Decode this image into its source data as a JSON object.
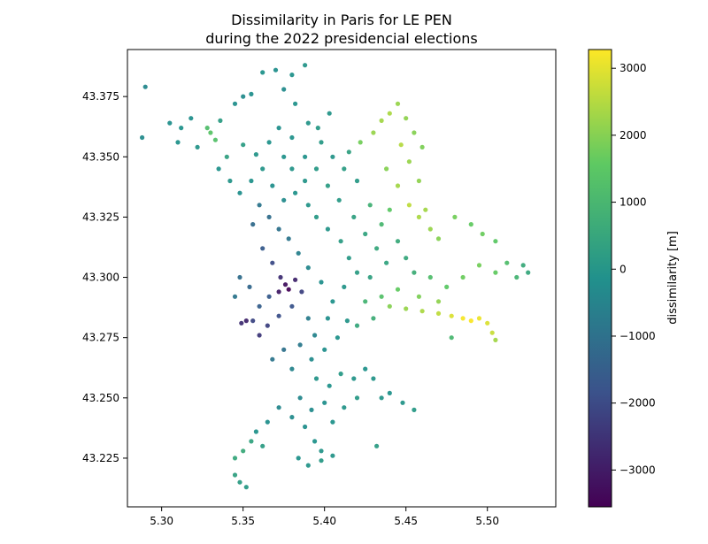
{
  "chart_data": {
    "type": "scatter",
    "title": "Dissimilarity in Paris for LE PEN\nduring the 2022 presidencial elections",
    "xlabel": "",
    "ylabel": "",
    "xlim": [
      5.279,
      5.542
    ],
    "ylim": [
      43.2048,
      43.3945
    ],
    "xticks": [
      5.3,
      5.35,
      5.4,
      5.45,
      5.5
    ],
    "xtick_labels": [
      "5.30",
      "5.35",
      "5.40",
      "5.45",
      "5.50"
    ],
    "yticks": [
      43.225,
      43.25,
      43.275,
      43.3,
      43.325,
      43.35,
      43.375
    ],
    "ytick_labels": [
      "43.225",
      "43.250",
      "43.275",
      "43.300",
      "43.325",
      "43.350",
      "43.375"
    ],
    "grid": false,
    "colormap": "viridis",
    "colormap_stops": [
      "#440154",
      "#3b528b",
      "#21918c",
      "#5ec962",
      "#fde725"
    ],
    "colorbar": {
      "label": "dissimilarity [m]",
      "range": [
        -3550,
        3280
      ],
      "ticks": [
        -3000,
        -2000,
        -1000,
        0,
        1000,
        2000,
        3000
      ],
      "tick_labels": [
        "−3000",
        "−2000",
        "−1000",
        "0",
        "1000",
        "2000",
        "3000"
      ]
    },
    "points": [
      [
        5.29,
        43.379,
        -400
      ],
      [
        5.288,
        43.358,
        -300
      ],
      [
        5.305,
        43.364,
        -200
      ],
      [
        5.312,
        43.362,
        -100
      ],
      [
        5.318,
        43.366,
        -200
      ],
      [
        5.33,
        43.36,
        1400
      ],
      [
        5.333,
        43.357,
        1300
      ],
      [
        5.328,
        43.362,
        1200
      ],
      [
        5.345,
        43.372,
        -200
      ],
      [
        5.35,
        43.375,
        -300
      ],
      [
        5.355,
        43.376,
        -200
      ],
      [
        5.362,
        43.385,
        -100
      ],
      [
        5.37,
        43.386,
        -200
      ],
      [
        5.38,
        43.384,
        -100
      ],
      [
        5.388,
        43.388,
        0
      ],
      [
        5.375,
        43.378,
        -300
      ],
      [
        5.382,
        43.372,
        -100
      ],
      [
        5.35,
        43.355,
        200
      ],
      [
        5.358,
        43.351,
        0
      ],
      [
        5.366,
        43.356,
        -100
      ],
      [
        5.372,
        43.362,
        -200
      ],
      [
        5.38,
        43.358,
        -100
      ],
      [
        5.39,
        43.364,
        0
      ],
      [
        5.398,
        43.356,
        100
      ],
      [
        5.405,
        43.35,
        0
      ],
      [
        5.412,
        43.345,
        200
      ],
      [
        5.42,
        43.34,
        100
      ],
      [
        5.415,
        43.352,
        300
      ],
      [
        5.422,
        43.356,
        1800
      ],
      [
        5.43,
        43.36,
        2200
      ],
      [
        5.435,
        43.365,
        2300
      ],
      [
        5.44,
        43.368,
        2400
      ],
      [
        5.445,
        43.372,
        2200
      ],
      [
        5.45,
        43.366,
        2100
      ],
      [
        5.455,
        43.36,
        2000
      ],
      [
        5.46,
        43.354,
        1900
      ],
      [
        5.447,
        43.355,
        2500
      ],
      [
        5.452,
        43.348,
        2200
      ],
      [
        5.438,
        43.345,
        2000
      ],
      [
        5.445,
        43.338,
        2300
      ],
      [
        5.458,
        43.34,
        2100
      ],
      [
        5.452,
        43.33,
        2600
      ],
      [
        5.458,
        43.325,
        2400
      ],
      [
        5.465,
        43.32,
        2200
      ],
      [
        5.47,
        43.316,
        2000
      ],
      [
        5.462,
        43.328,
        2300
      ],
      [
        5.44,
        43.328,
        1500
      ],
      [
        5.435,
        43.322,
        1000
      ],
      [
        5.428,
        43.33,
        800
      ],
      [
        5.445,
        43.315,
        600
      ],
      [
        5.45,
        43.308,
        500
      ],
      [
        5.455,
        43.302,
        700
      ],
      [
        5.465,
        43.3,
        1200
      ],
      [
        5.475,
        43.296,
        1500
      ],
      [
        5.485,
        43.3,
        1700
      ],
      [
        5.495,
        43.305,
        1800
      ],
      [
        5.505,
        43.302,
        1600
      ],
      [
        5.512,
        43.306,
        1200
      ],
      [
        5.518,
        43.3,
        900
      ],
      [
        5.522,
        43.305,
        600
      ],
      [
        5.525,
        43.302,
        500
      ],
      [
        5.497,
        43.318,
        1700
      ],
      [
        5.505,
        43.315,
        1500
      ],
      [
        5.49,
        43.322,
        1600
      ],
      [
        5.48,
        43.325,
        1800
      ],
      [
        5.44,
        43.288,
        2000
      ],
      [
        5.45,
        43.287,
        2200
      ],
      [
        5.46,
        43.286,
        2400
      ],
      [
        5.47,
        43.285,
        2600
      ],
      [
        5.478,
        43.284,
        2900
      ],
      [
        5.485,
        43.283,
        3200
      ],
      [
        5.49,
        43.282,
        3250
      ],
      [
        5.495,
        43.283,
        3100
      ],
      [
        5.5,
        43.281,
        2900
      ],
      [
        5.503,
        43.277,
        2700
      ],
      [
        5.505,
        43.274,
        2300
      ],
      [
        5.47,
        43.29,
        2100
      ],
      [
        5.458,
        43.292,
        1900
      ],
      [
        5.445,
        43.295,
        1600
      ],
      [
        5.435,
        43.292,
        1300
      ],
      [
        5.425,
        43.29,
        900
      ],
      [
        5.43,
        43.283,
        700
      ],
      [
        5.42,
        43.28,
        500
      ],
      [
        5.478,
        43.275,
        1000
      ],
      [
        5.39,
        43.33,
        0
      ],
      [
        5.395,
        43.325,
        100
      ],
      [
        5.402,
        43.32,
        0
      ],
      [
        5.41,
        43.315,
        200
      ],
      [
        5.415,
        43.308,
        100
      ],
      [
        5.42,
        43.302,
        200
      ],
      [
        5.412,
        43.296,
        0
      ],
      [
        5.405,
        43.29,
        -100
      ],
      [
        5.398,
        43.298,
        -200
      ],
      [
        5.39,
        43.304,
        -400
      ],
      [
        5.384,
        43.31,
        -600
      ],
      [
        5.378,
        43.316,
        -900
      ],
      [
        5.372,
        43.32,
        -1000
      ],
      [
        5.366,
        43.325,
        -1100
      ],
      [
        5.36,
        43.33,
        -900
      ],
      [
        5.356,
        43.322,
        -1200
      ],
      [
        5.362,
        43.312,
        -1600
      ],
      [
        5.368,
        43.306,
        -2000
      ],
      [
        5.373,
        43.3,
        -2600
      ],
      [
        5.376,
        43.297,
        -3200
      ],
      [
        5.378,
        43.295,
        -3500
      ],
      [
        5.372,
        43.294,
        -3000
      ],
      [
        5.382,
        43.299,
        -2800
      ],
      [
        5.386,
        43.294,
        -2200
      ],
      [
        5.38,
        43.288,
        -1800
      ],
      [
        5.372,
        43.284,
        -1900
      ],
      [
        5.365,
        43.28,
        -2200
      ],
      [
        5.36,
        43.276,
        -2400
      ],
      [
        5.356,
        43.282,
        -2100
      ],
      [
        5.352,
        43.282,
        -2800
      ],
      [
        5.349,
        43.281,
        -2600
      ],
      [
        5.36,
        43.288,
        -1500
      ],
      [
        5.366,
        43.292,
        -1600
      ],
      [
        5.354,
        43.296,
        -1300
      ],
      [
        5.348,
        43.3,
        -1100
      ],
      [
        5.345,
        43.292,
        -900
      ],
      [
        5.39,
        43.283,
        -700
      ],
      [
        5.394,
        43.276,
        -500
      ],
      [
        5.385,
        43.272,
        -800
      ],
      [
        5.375,
        43.27,
        -1000
      ],
      [
        5.368,
        43.266,
        -900
      ],
      [
        5.38,
        43.262,
        -500
      ],
      [
        5.392,
        43.266,
        -300
      ],
      [
        5.4,
        43.27,
        -200
      ],
      [
        5.408,
        43.275,
        -100
      ],
      [
        5.414,
        43.282,
        0
      ],
      [
        5.402,
        43.283,
        -200
      ],
      [
        5.395,
        43.258,
        0
      ],
      [
        5.403,
        43.255,
        -100
      ],
      [
        5.41,
        43.26,
        100
      ],
      [
        5.418,
        43.258,
        0
      ],
      [
        5.425,
        43.262,
        -100
      ],
      [
        5.43,
        43.258,
        0
      ],
      [
        5.4,
        43.248,
        -200
      ],
      [
        5.392,
        43.245,
        -300
      ],
      [
        5.385,
        43.25,
        -400
      ],
      [
        5.38,
        43.242,
        -300
      ],
      [
        5.372,
        43.246,
        -400
      ],
      [
        5.388,
        43.238,
        -200
      ],
      [
        5.394,
        43.232,
        -100
      ],
      [
        5.398,
        43.228,
        0
      ],
      [
        5.405,
        43.24,
        -100
      ],
      [
        5.412,
        43.246,
        0
      ],
      [
        5.42,
        43.25,
        100
      ],
      [
        5.435,
        43.25,
        0
      ],
      [
        5.44,
        43.252,
        -100
      ],
      [
        5.448,
        43.248,
        0
      ],
      [
        5.455,
        43.245,
        100
      ],
      [
        5.365,
        43.24,
        -200
      ],
      [
        5.358,
        43.236,
        -100
      ],
      [
        5.362,
        43.23,
        200
      ],
      [
        5.355,
        43.232,
        400
      ],
      [
        5.35,
        43.228,
        600
      ],
      [
        5.345,
        43.225,
        500
      ],
      [
        5.384,
        43.225,
        -100
      ],
      [
        5.39,
        43.222,
        0
      ],
      [
        5.398,
        43.224,
        100
      ],
      [
        5.405,
        43.226,
        0
      ],
      [
        5.432,
        43.23,
        200
      ],
      [
        5.345,
        43.218,
        300
      ],
      [
        5.348,
        43.215,
        200
      ],
      [
        5.352,
        43.213,
        100
      ],
      [
        5.335,
        43.345,
        -100
      ],
      [
        5.342,
        43.34,
        0
      ],
      [
        5.348,
        43.335,
        -200
      ],
      [
        5.355,
        43.34,
        -100
      ],
      [
        5.362,
        43.345,
        0
      ],
      [
        5.34,
        43.35,
        300
      ],
      [
        5.368,
        43.338,
        -200
      ],
      [
        5.375,
        43.332,
        -300
      ],
      [
        5.382,
        43.335,
        -100
      ],
      [
        5.388,
        43.34,
        0
      ],
      [
        5.395,
        43.345,
        100
      ],
      [
        5.402,
        43.338,
        200
      ],
      [
        5.409,
        43.332,
        100
      ],
      [
        5.418,
        43.325,
        300
      ],
      [
        5.425,
        43.318,
        400
      ],
      [
        5.432,
        43.312,
        500
      ],
      [
        5.438,
        43.306,
        400
      ],
      [
        5.428,
        43.3,
        300
      ],
      [
        5.375,
        43.35,
        -100
      ],
      [
        5.38,
        43.345,
        0
      ],
      [
        5.388,
        43.35,
        -100
      ],
      [
        5.396,
        43.362,
        100
      ],
      [
        5.403,
        43.368,
        0
      ],
      [
        5.31,
        43.356,
        -100
      ],
      [
        5.322,
        43.354,
        0
      ],
      [
        5.336,
        43.365,
        200
      ]
    ]
  }
}
